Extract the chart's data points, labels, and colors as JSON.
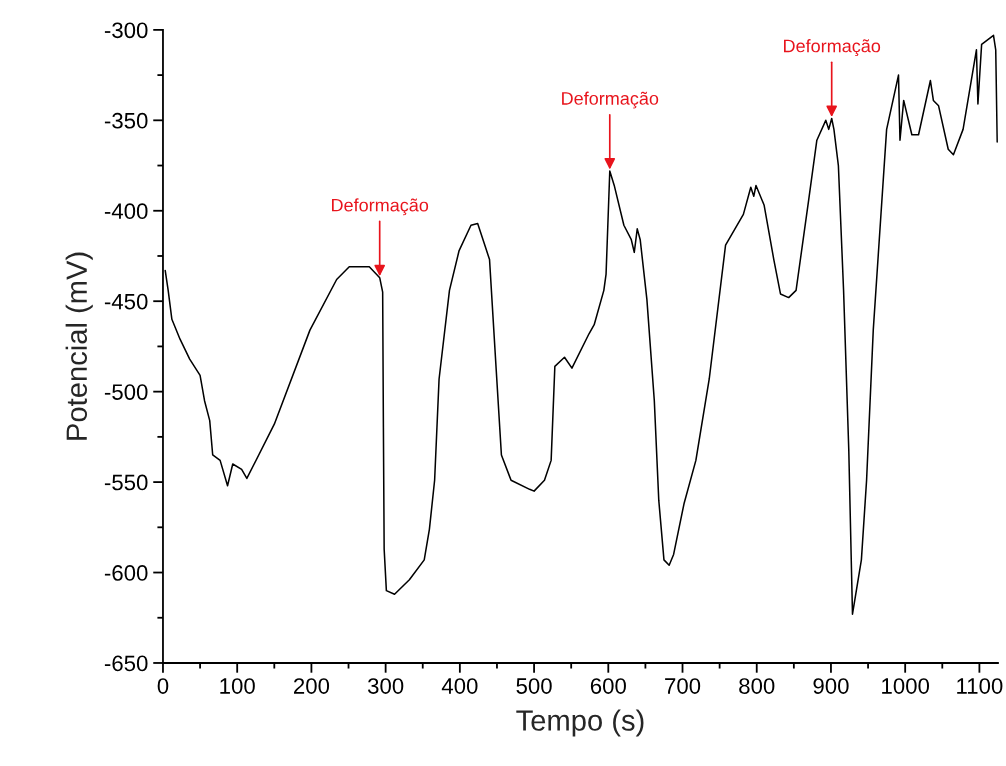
{
  "chart_data": {
    "type": "line",
    "xlabel": "Tempo (s)",
    "ylabel": "Potencial (mV)",
    "xlim": [
      0,
      1125
    ],
    "xticks": [
      0,
      100,
      200,
      300,
      400,
      500,
      600,
      700,
      800,
      900,
      1000,
      1100
    ],
    "ylim": [
      -650,
      -300
    ],
    "yticks": [
      -650,
      -600,
      -550,
      -500,
      -450,
      -400,
      -350,
      -300
    ],
    "grid": false,
    "legend": false,
    "series": [
      {
        "color": "#000000",
        "x": [
          3,
          7,
          12,
          23,
          36,
          50,
          56,
          63,
          67,
          77,
          87,
          94,
          106,
          113,
          150,
          198,
          234,
          251,
          278,
          292,
          296,
          297,
          298,
          301,
          312,
          332,
          352,
          359,
          366,
          372,
          386,
          399,
          415,
          424,
          436,
          440,
          449,
          456,
          469,
          494,
          500,
          514,
          523,
          528,
          541,
          551,
          574,
          581,
          594,
          597,
          602,
          608,
          621,
          631,
          635,
          639,
          643,
          652,
          662,
          668,
          675,
          682,
          688,
          702,
          718,
          736,
          758,
          782,
          792,
          796,
          799,
          810,
          823,
          832,
          843,
          853,
          870,
          881,
          893,
          897,
          901,
          904,
          910,
          917,
          924,
          929,
          941,
          948,
          957,
          975,
          991,
          993,
          998,
          1009,
          1018,
          1034,
          1038,
          1045,
          1058,
          1065,
          1078,
          1096,
          1098,
          1103,
          1119,
          1122,
          1124
        ],
        "values": [
          -433,
          -444,
          -460,
          -471,
          -482,
          -491,
          -505,
          -516,
          -535,
          -538,
          -552,
          -540,
          -543,
          -548,
          -518,
          -466,
          -438,
          -431,
          -431,
          -437,
          -445,
          -520,
          -587,
          -610,
          -612,
          -604,
          -593,
          -576,
          -549,
          -493,
          -444,
          -422,
          -408,
          -407,
          -422,
          -427,
          -488,
          -535,
          -549,
          -554,
          -555,
          -549,
          -538,
          -486,
          -481,
          -487,
          -468,
          -463,
          -444,
          -435,
          -378,
          -386,
          -408,
          -416,
          -423,
          -410,
          -416,
          -449,
          -505,
          -560,
          -593,
          -596,
          -590,
          -562,
          -538,
          -493,
          -419,
          -402,
          -387,
          -392,
          -386,
          -397,
          -427,
          -446,
          -448,
          -444,
          -394,
          -361,
          -350,
          -355,
          -349,
          -355,
          -375,
          -444,
          -532,
          -623,
          -593,
          -549,
          -466,
          -355,
          -325,
          -361,
          -339,
          -358,
          -358,
          -328,
          -339,
          -342,
          -366,
          -369,
          -355,
          -311,
          -341,
          -308,
          -303,
          -311,
          -362
        ]
      }
    ],
    "annotations": [
      {
        "text": "Deformação",
        "x": 292,
        "y": -437
      },
      {
        "text": "Deformação",
        "x": 602,
        "y": -378
      },
      {
        "text": "Deformação",
        "x": 901,
        "y": -349
      }
    ]
  }
}
